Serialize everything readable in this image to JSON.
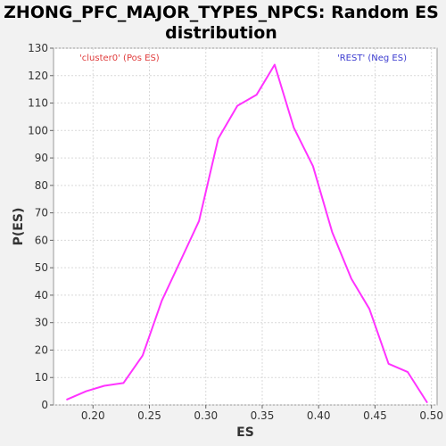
{
  "chart_data": {
    "type": "line",
    "title_lines": [
      "ZHONG_PFC_MAJOR_TYPES_NPCS: Random ES",
      "distribution"
    ],
    "xlabel": "ES",
    "ylabel": "P(ES)",
    "xlim": [
      0.165,
      0.505
    ],
    "ylim": [
      0,
      130
    ],
    "x_ticks": [
      0.2,
      0.25,
      0.3,
      0.35,
      0.4,
      0.45,
      0.5
    ],
    "x_tick_labels": [
      "0.20",
      "0.25",
      "0.30",
      "0.35",
      "0.40",
      "0.45",
      "0.50"
    ],
    "y_ticks": [
      0,
      10,
      20,
      30,
      40,
      50,
      60,
      70,
      80,
      90,
      100,
      110,
      120,
      130
    ],
    "grid": true,
    "legend": [
      {
        "text": "'cluster0' (Pos ES)",
        "color": "#e03c3c",
        "placement": "top-left"
      },
      {
        "text": "'REST' (Neg ES)",
        "color": "#3c3cd0",
        "placement": "top-right"
      }
    ],
    "series": [
      {
        "color": "#ff33ff",
        "x": [
          0.177,
          0.194,
          0.21,
          0.227,
          0.244,
          0.261,
          0.277,
          0.294,
          0.311,
          0.328,
          0.345,
          0.361,
          0.378,
          0.395,
          0.412,
          0.429,
          0.445,
          0.462,
          0.479,
          0.496
        ],
        "y": [
          2,
          5,
          7,
          8,
          18,
          38,
          52,
          67,
          97,
          109,
          113,
          124,
          101,
          87,
          63,
          46,
          35,
          15,
          12,
          1
        ]
      }
    ]
  }
}
